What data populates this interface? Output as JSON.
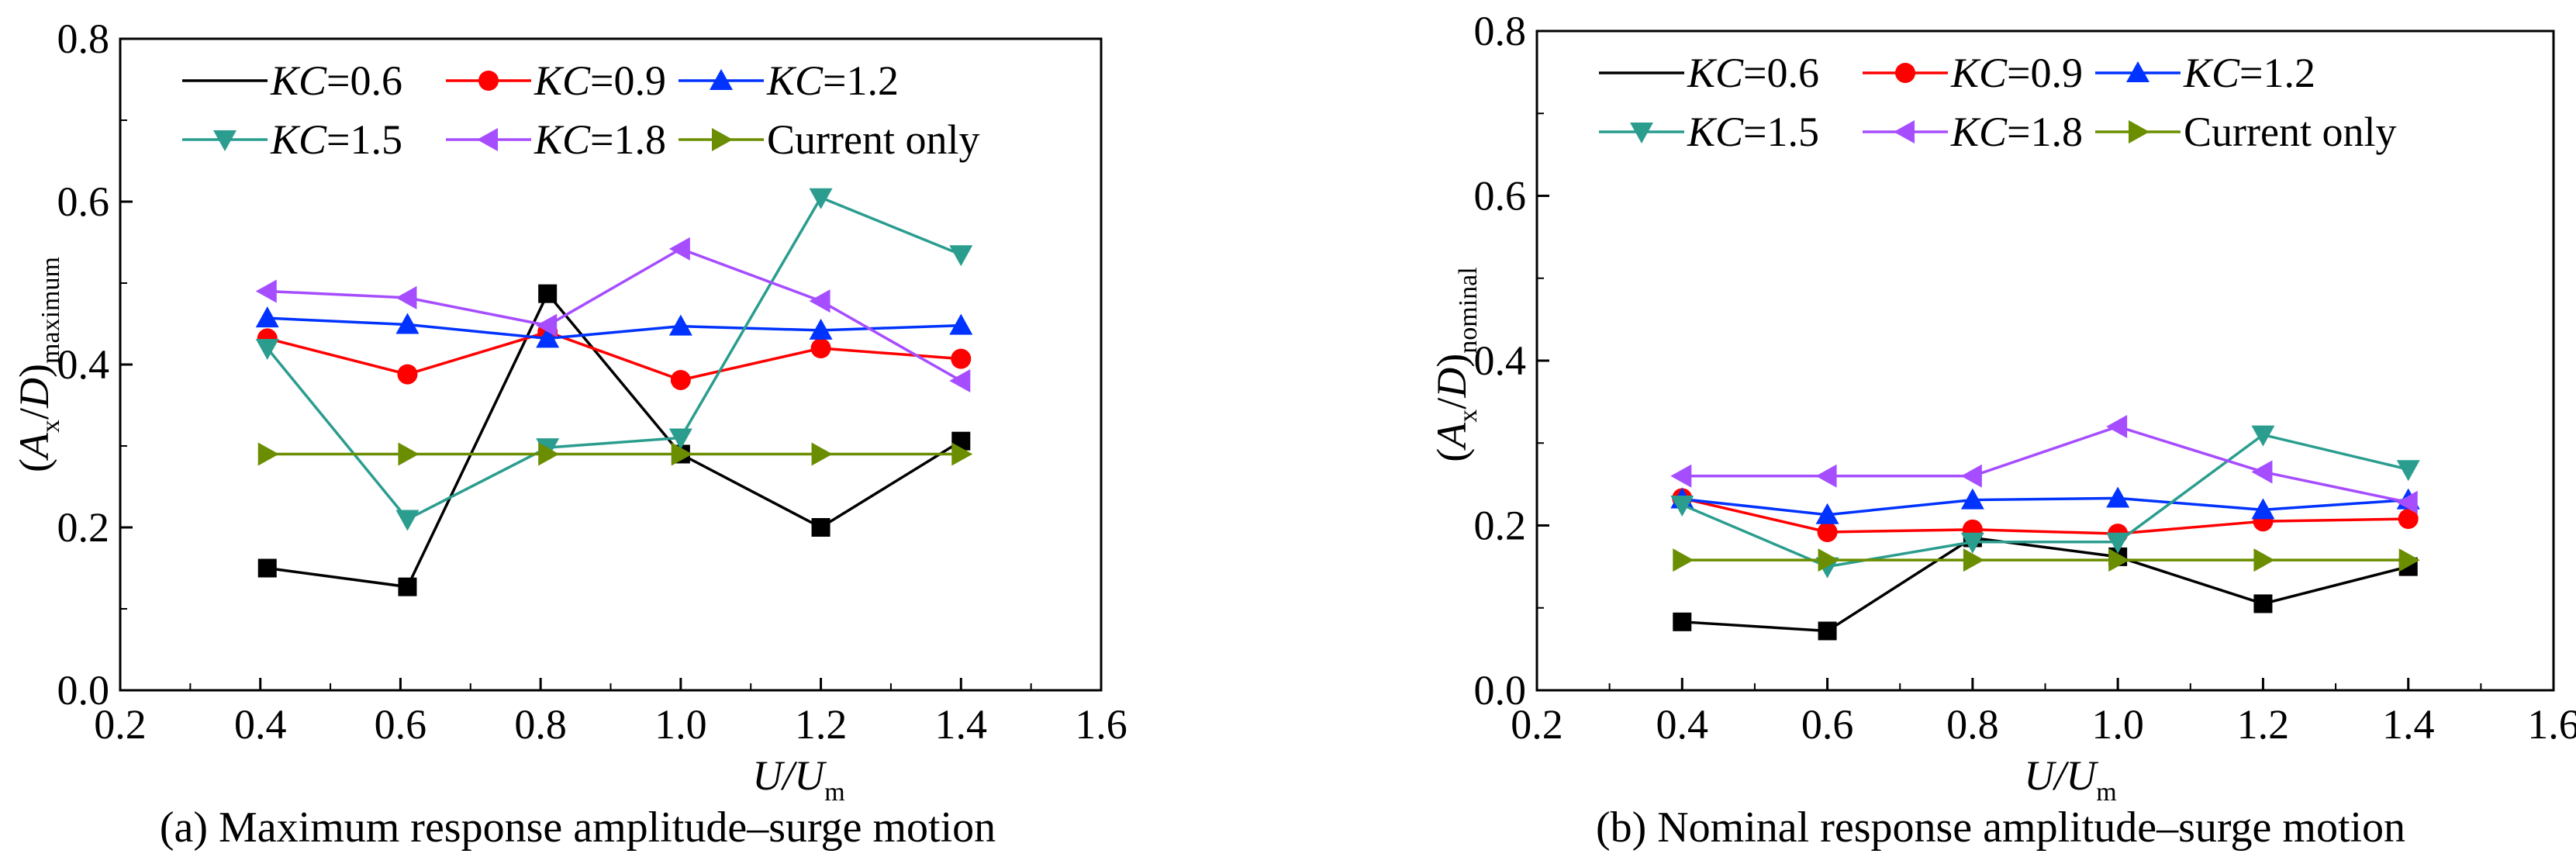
{
  "x_categories": [
    0.4,
    0.6,
    0.8,
    1.0,
    1.2,
    1.4
  ],
  "chart_data": [
    {
      "type": "line",
      "caption": "(a) Maximum response amplitude–surge motion",
      "xlabel": {
        "main": "U/U",
        "sub": "m"
      },
      "ylabel": {
        "main": "(A",
        "sub1": "x",
        "mid": "/D)",
        "sub2": "maximum"
      },
      "xlim": [
        0.2,
        1.6
      ],
      "ylim": [
        0.0,
        0.8
      ],
      "xticks": [
        "0.2",
        "0.4",
        "0.6",
        "0.8",
        "1.0",
        "1.2",
        "1.4",
        "1.6"
      ],
      "yticks": [
        "0.0",
        "0.2",
        "0.4",
        "0.6",
        "0.8"
      ],
      "legend_position": "top-left",
      "series": [
        {
          "prefix": "KC",
          "name": "=0.6",
          "color": "#000000",
          "marker": "square",
          "x": [
            0.41,
            0.61,
            0.81,
            1.0,
            1.2,
            1.4
          ],
          "values": [
            0.15,
            0.127,
            0.487,
            0.29,
            0.2,
            0.306
          ]
        },
        {
          "prefix": "KC",
          "name": "=0.9",
          "color": "#ff0000",
          "marker": "circle",
          "x": [
            0.41,
            0.61,
            0.81,
            1.0,
            1.2,
            1.4
          ],
          "values": [
            0.432,
            0.388,
            0.44,
            0.381,
            0.42,
            0.407
          ]
        },
        {
          "prefix": "KC",
          "name": "=1.2",
          "color": "#0033ff",
          "marker": "triangle-up",
          "x": [
            0.41,
            0.61,
            0.81,
            1.0,
            1.2,
            1.4
          ],
          "values": [
            0.457,
            0.449,
            0.432,
            0.447,
            0.442,
            0.448
          ]
        },
        {
          "prefix": "KC",
          "name": "=1.5",
          "color": "#2a9d8f",
          "marker": "triangle-down",
          "x": [
            0.41,
            0.61,
            0.81,
            1.0,
            1.2,
            1.4
          ],
          "values": [
            0.42,
            0.21,
            0.298,
            0.31,
            0.605,
            0.535
          ]
        },
        {
          "prefix": "KC",
          "name": "=1.8",
          "color": "#a64dff",
          "marker": "triangle-left",
          "x": [
            0.41,
            0.61,
            0.81,
            1.0,
            1.2,
            1.4
          ],
          "values": [
            0.49,
            0.482,
            0.448,
            0.542,
            0.478,
            0.38
          ]
        },
        {
          "prefix": "",
          "name": "Current only",
          "color": "#6b8e00",
          "marker": "triangle-right",
          "x": [
            0.41,
            0.61,
            0.81,
            1.0,
            1.2,
            1.4
          ],
          "values": [
            0.29,
            0.29,
            0.29,
            0.29,
            0.29,
            0.29
          ]
        }
      ]
    },
    {
      "type": "line",
      "caption": "(b) Nominal response amplitude–surge motion",
      "xlabel": {
        "main": "U/U",
        "sub": "m"
      },
      "ylabel": {
        "main": "(A",
        "sub1": "x",
        "mid": "/D)",
        "sub2": "nominal"
      },
      "xlim": [
        0.2,
        1.6
      ],
      "ylim": [
        0.0,
        0.8
      ],
      "xticks": [
        "0.2",
        "0.4",
        "0.6",
        "0.8",
        "1.0",
        "1.2",
        "1.4",
        "1.6"
      ],
      "yticks": [
        "0.0",
        "0.2",
        "0.4",
        "0.6",
        "0.8"
      ],
      "legend_position": "top-left",
      "series": [
        {
          "prefix": "KC",
          "name": "=0.6",
          "color": "#000000",
          "marker": "square",
          "x": [
            0.4,
            0.6,
            0.8,
            1.0,
            1.2,
            1.4
          ],
          "values": [
            0.083,
            0.072,
            0.185,
            0.162,
            0.105,
            0.15
          ]
        },
        {
          "prefix": "KC",
          "name": "=0.9",
          "color": "#ff0000",
          "marker": "circle",
          "x": [
            0.4,
            0.6,
            0.8,
            1.0,
            1.2,
            1.4
          ],
          "values": [
            0.233,
            0.192,
            0.195,
            0.19,
            0.205,
            0.208
          ]
        },
        {
          "prefix": "KC",
          "name": "=1.2",
          "color": "#0033ff",
          "marker": "triangle-up",
          "x": [
            0.4,
            0.6,
            0.8,
            1.0,
            1.2,
            1.4
          ],
          "values": [
            0.232,
            0.213,
            0.231,
            0.233,
            0.219,
            0.231
          ]
        },
        {
          "prefix": "KC",
          "name": "=1.5",
          "color": "#2a9d8f",
          "marker": "triangle-down",
          "x": [
            0.4,
            0.6,
            0.8,
            1.0,
            1.2,
            1.4
          ],
          "values": [
            0.225,
            0.15,
            0.18,
            0.18,
            0.31,
            0.268
          ]
        },
        {
          "prefix": "KC",
          "name": "=1.8",
          "color": "#a64dff",
          "marker": "triangle-left",
          "x": [
            0.4,
            0.6,
            0.8,
            1.0,
            1.2,
            1.4
          ],
          "values": [
            0.26,
            0.26,
            0.26,
            0.32,
            0.265,
            0.228
          ]
        },
        {
          "prefix": "",
          "name": "Current only",
          "color": "#6b8e00",
          "marker": "triangle-right",
          "x": [
            0.4,
            0.6,
            0.8,
            1.0,
            1.2,
            1.4
          ],
          "values": [
            0.158,
            0.158,
            0.158,
            0.158,
            0.158,
            0.158
          ]
        }
      ]
    }
  ]
}
